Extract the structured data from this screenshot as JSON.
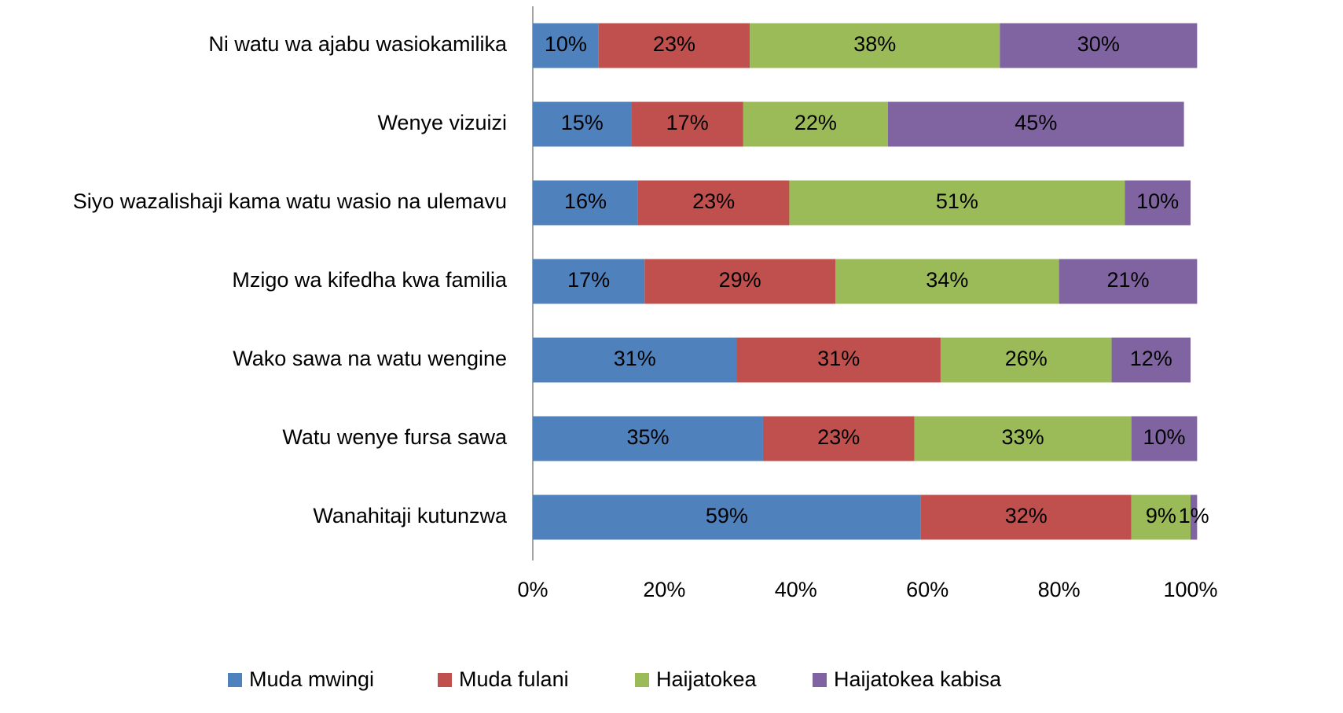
{
  "chart_data": {
    "type": "stacked_bar_horizontal",
    "categories": [
      "Ni watu wa ajabu wasiokamilika",
      "Wenye vizuizi",
      "Siyo wazalishaji kama watu wasio na ulemavu",
      "Mzigo wa kifedha kwa familia",
      "Wako sawa na watu wengine",
      "Watu wenye fursa sawa",
      "Wanahitaji kutunzwa"
    ],
    "series": [
      {
        "name": "Muda mwingi",
        "color": "#4f81bd",
        "values": [
          10,
          15,
          16,
          17,
          31,
          35,
          59
        ],
        "value_labels": [
          "10%",
          "15%",
          "16%",
          "17%",
          "31%",
          "35%",
          "59%"
        ]
      },
      {
        "name": "Muda fulani",
        "color": "#c0504d",
        "values": [
          23,
          17,
          23,
          29,
          31,
          23,
          32
        ],
        "value_labels": [
          "23%",
          "17%",
          "23%",
          "29%",
          "31%",
          "23%",
          "32%"
        ]
      },
      {
        "name": "Haijatokea",
        "color": "#9bbb59",
        "values": [
          38,
          22,
          51,
          34,
          26,
          33,
          9
        ],
        "value_labels": [
          "38%",
          "22%",
          "51%",
          "34%",
          "26%",
          "33%",
          "9%"
        ]
      },
      {
        "name": "Haijatokea kabisa",
        "color": "#8064a2",
        "values": [
          30,
          45,
          10,
          21,
          12,
          10,
          1
        ],
        "value_labels": [
          "30%",
          "45%",
          "10%",
          "21%",
          "12%",
          "10%",
          "1%"
        ]
      }
    ],
    "xlim": [
      0,
      100
    ],
    "xticks": [
      {
        "value": 0,
        "label": "0%"
      },
      {
        "value": 20,
        "label": "20%"
      },
      {
        "value": 40,
        "label": "40%"
      },
      {
        "value": 60,
        "label": "60%"
      },
      {
        "value": 80,
        "label": "80%"
      },
      {
        "value": 100,
        "label": "100%"
      }
    ],
    "legend": "bottom"
  }
}
